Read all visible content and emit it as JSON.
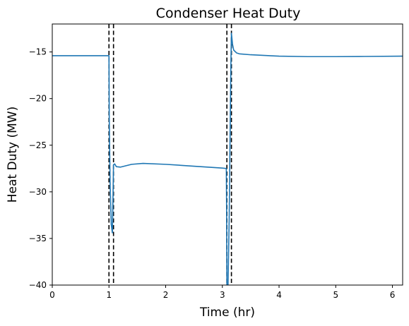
{
  "chart_data": {
    "type": "line",
    "title": "Condenser Heat Duty",
    "xlabel": "Time (hr)",
    "ylabel": "Heat Duty (MW)",
    "xlim": [
      0,
      6.18
    ],
    "ylim": [
      -40,
      -12
    ],
    "xticks": [
      0,
      1,
      2,
      3,
      4,
      5,
      6
    ],
    "xtick_labels": [
      "0",
      "1",
      "2",
      "3",
      "4",
      "5",
      "6"
    ],
    "yticks": [
      -15,
      -20,
      -25,
      -30,
      -35,
      -40
    ],
    "ytick_labels": [
      "−15",
      "−20",
      "−25",
      "−30",
      "−35",
      "−40"
    ],
    "grid": false,
    "legend": "none",
    "vlines": [
      1.0,
      1.08,
      3.08,
      3.16
    ],
    "series": [
      {
        "color": "#1f77b4",
        "x": [
          0,
          0.5,
          0.99,
          1.0,
          1.005,
          1.02,
          1.04,
          1.06,
          1.07,
          1.08,
          1.1,
          1.13,
          1.2,
          1.4,
          1.6,
          2.0,
          2.5,
          3.0,
          3.07,
          3.075,
          3.08,
          3.1,
          3.12,
          3.14,
          3.15,
          3.16,
          3.18,
          3.2,
          3.25,
          3.3,
          3.5,
          4.0,
          4.5,
          5.0,
          5.5,
          6.18
        ],
        "y": [
          -15.4,
          -15.4,
          -15.4,
          -15.4,
          -22.0,
          -29.0,
          -33.5,
          -34.4,
          -31.0,
          -27.1,
          -27.0,
          -27.3,
          -27.35,
          -27.05,
          -26.95,
          -27.05,
          -27.25,
          -27.45,
          -27.5,
          -32.0,
          -40.0,
          -40.0,
          -33.0,
          -22.0,
          -16.5,
          -13.0,
          -14.2,
          -14.8,
          -15.1,
          -15.2,
          -15.3,
          -15.45,
          -15.5,
          -15.5,
          -15.48,
          -15.45
        ]
      }
    ]
  }
}
